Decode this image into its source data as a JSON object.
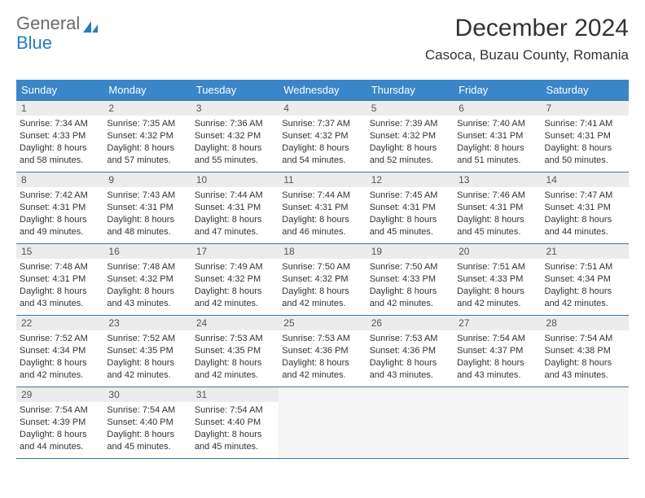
{
  "logo": {
    "text_general": "General",
    "text_blue": "Blue",
    "colors": {
      "general": "#6a6a6a",
      "blue": "#2a7bbf",
      "icon": "#2a7bbf"
    }
  },
  "title": "December 2024",
  "location": "Casoca, Buzau County, Romania",
  "theme": {
    "header_bg": "#3a86c8",
    "header_fg": "#ffffff",
    "row_border": "#3a75a8",
    "daynum_bg": "#ececec",
    "empty_bg": "#f5f5f5",
    "body_font_size": 11,
    "header_font_size": 13,
    "title_font_size": 30,
    "location_font_size": 17
  },
  "weekdays": [
    "Sunday",
    "Monday",
    "Tuesday",
    "Wednesday",
    "Thursday",
    "Friday",
    "Saturday"
  ],
  "weeks": [
    [
      {
        "n": "1",
        "sr": "Sunrise: 7:34 AM",
        "ss": "Sunset: 4:33 PM",
        "dl1": "Daylight: 8 hours",
        "dl2": "and 58 minutes."
      },
      {
        "n": "2",
        "sr": "Sunrise: 7:35 AM",
        "ss": "Sunset: 4:32 PM",
        "dl1": "Daylight: 8 hours",
        "dl2": "and 57 minutes."
      },
      {
        "n": "3",
        "sr": "Sunrise: 7:36 AM",
        "ss": "Sunset: 4:32 PM",
        "dl1": "Daylight: 8 hours",
        "dl2": "and 55 minutes."
      },
      {
        "n": "4",
        "sr": "Sunrise: 7:37 AM",
        "ss": "Sunset: 4:32 PM",
        "dl1": "Daylight: 8 hours",
        "dl2": "and 54 minutes."
      },
      {
        "n": "5",
        "sr": "Sunrise: 7:39 AM",
        "ss": "Sunset: 4:32 PM",
        "dl1": "Daylight: 8 hours",
        "dl2": "and 52 minutes."
      },
      {
        "n": "6",
        "sr": "Sunrise: 7:40 AM",
        "ss": "Sunset: 4:31 PM",
        "dl1": "Daylight: 8 hours",
        "dl2": "and 51 minutes."
      },
      {
        "n": "7",
        "sr": "Sunrise: 7:41 AM",
        "ss": "Sunset: 4:31 PM",
        "dl1": "Daylight: 8 hours",
        "dl2": "and 50 minutes."
      }
    ],
    [
      {
        "n": "8",
        "sr": "Sunrise: 7:42 AM",
        "ss": "Sunset: 4:31 PM",
        "dl1": "Daylight: 8 hours",
        "dl2": "and 49 minutes."
      },
      {
        "n": "9",
        "sr": "Sunrise: 7:43 AM",
        "ss": "Sunset: 4:31 PM",
        "dl1": "Daylight: 8 hours",
        "dl2": "and 48 minutes."
      },
      {
        "n": "10",
        "sr": "Sunrise: 7:44 AM",
        "ss": "Sunset: 4:31 PM",
        "dl1": "Daylight: 8 hours",
        "dl2": "and 47 minutes."
      },
      {
        "n": "11",
        "sr": "Sunrise: 7:44 AM",
        "ss": "Sunset: 4:31 PM",
        "dl1": "Daylight: 8 hours",
        "dl2": "and 46 minutes."
      },
      {
        "n": "12",
        "sr": "Sunrise: 7:45 AM",
        "ss": "Sunset: 4:31 PM",
        "dl1": "Daylight: 8 hours",
        "dl2": "and 45 minutes."
      },
      {
        "n": "13",
        "sr": "Sunrise: 7:46 AM",
        "ss": "Sunset: 4:31 PM",
        "dl1": "Daylight: 8 hours",
        "dl2": "and 45 minutes."
      },
      {
        "n": "14",
        "sr": "Sunrise: 7:47 AM",
        "ss": "Sunset: 4:31 PM",
        "dl1": "Daylight: 8 hours",
        "dl2": "and 44 minutes."
      }
    ],
    [
      {
        "n": "15",
        "sr": "Sunrise: 7:48 AM",
        "ss": "Sunset: 4:31 PM",
        "dl1": "Daylight: 8 hours",
        "dl2": "and 43 minutes."
      },
      {
        "n": "16",
        "sr": "Sunrise: 7:48 AM",
        "ss": "Sunset: 4:32 PM",
        "dl1": "Daylight: 8 hours",
        "dl2": "and 43 minutes."
      },
      {
        "n": "17",
        "sr": "Sunrise: 7:49 AM",
        "ss": "Sunset: 4:32 PM",
        "dl1": "Daylight: 8 hours",
        "dl2": "and 42 minutes."
      },
      {
        "n": "18",
        "sr": "Sunrise: 7:50 AM",
        "ss": "Sunset: 4:32 PM",
        "dl1": "Daylight: 8 hours",
        "dl2": "and 42 minutes."
      },
      {
        "n": "19",
        "sr": "Sunrise: 7:50 AM",
        "ss": "Sunset: 4:33 PM",
        "dl1": "Daylight: 8 hours",
        "dl2": "and 42 minutes."
      },
      {
        "n": "20",
        "sr": "Sunrise: 7:51 AM",
        "ss": "Sunset: 4:33 PM",
        "dl1": "Daylight: 8 hours",
        "dl2": "and 42 minutes."
      },
      {
        "n": "21",
        "sr": "Sunrise: 7:51 AM",
        "ss": "Sunset: 4:34 PM",
        "dl1": "Daylight: 8 hours",
        "dl2": "and 42 minutes."
      }
    ],
    [
      {
        "n": "22",
        "sr": "Sunrise: 7:52 AM",
        "ss": "Sunset: 4:34 PM",
        "dl1": "Daylight: 8 hours",
        "dl2": "and 42 minutes."
      },
      {
        "n": "23",
        "sr": "Sunrise: 7:52 AM",
        "ss": "Sunset: 4:35 PM",
        "dl1": "Daylight: 8 hours",
        "dl2": "and 42 minutes."
      },
      {
        "n": "24",
        "sr": "Sunrise: 7:53 AM",
        "ss": "Sunset: 4:35 PM",
        "dl1": "Daylight: 8 hours",
        "dl2": "and 42 minutes."
      },
      {
        "n": "25",
        "sr": "Sunrise: 7:53 AM",
        "ss": "Sunset: 4:36 PM",
        "dl1": "Daylight: 8 hours",
        "dl2": "and 42 minutes."
      },
      {
        "n": "26",
        "sr": "Sunrise: 7:53 AM",
        "ss": "Sunset: 4:36 PM",
        "dl1": "Daylight: 8 hours",
        "dl2": "and 43 minutes."
      },
      {
        "n": "27",
        "sr": "Sunrise: 7:54 AM",
        "ss": "Sunset: 4:37 PM",
        "dl1": "Daylight: 8 hours",
        "dl2": "and 43 minutes."
      },
      {
        "n": "28",
        "sr": "Sunrise: 7:54 AM",
        "ss": "Sunset: 4:38 PM",
        "dl1": "Daylight: 8 hours",
        "dl2": "and 43 minutes."
      }
    ],
    [
      {
        "n": "29",
        "sr": "Sunrise: 7:54 AM",
        "ss": "Sunset: 4:39 PM",
        "dl1": "Daylight: 8 hours",
        "dl2": "and 44 minutes."
      },
      {
        "n": "30",
        "sr": "Sunrise: 7:54 AM",
        "ss": "Sunset: 4:40 PM",
        "dl1": "Daylight: 8 hours",
        "dl2": "and 45 minutes."
      },
      {
        "n": "31",
        "sr": "Sunrise: 7:54 AM",
        "ss": "Sunset: 4:40 PM",
        "dl1": "Daylight: 8 hours",
        "dl2": "and 45 minutes."
      },
      {
        "empty": true
      },
      {
        "empty": true
      },
      {
        "empty": true
      },
      {
        "empty": true
      }
    ]
  ]
}
